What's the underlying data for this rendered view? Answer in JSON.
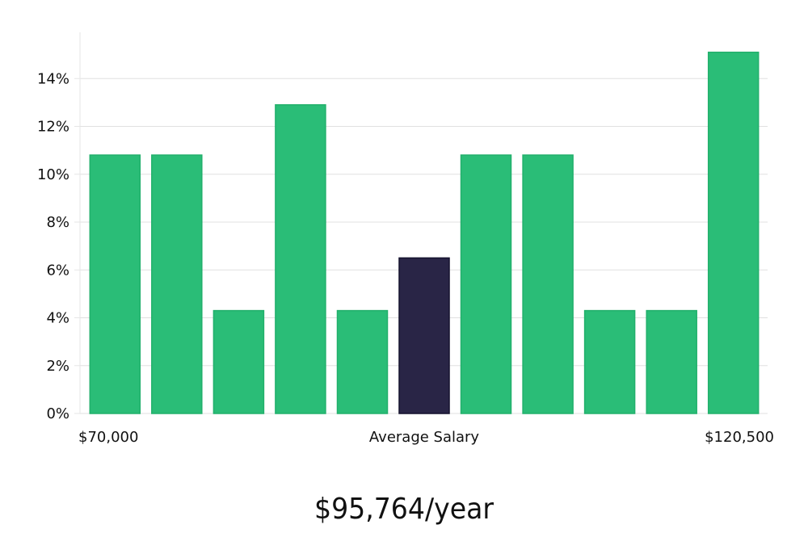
{
  "chart_data": {
    "type": "bar",
    "title": "",
    "xlabel": "",
    "ylabel": "",
    "ylim": [
      0,
      16
    ],
    "y_ticks": [
      0,
      2,
      4,
      6,
      8,
      10,
      12,
      14
    ],
    "y_tick_suffix": "%",
    "x_axis_labels": {
      "left": "$70,000",
      "center": "Average Salary",
      "right": "$120,500"
    },
    "values": [
      10.8,
      10.8,
      4.3,
      12.9,
      4.3,
      6.5,
      10.8,
      10.8,
      4.3,
      4.3,
      15.1
    ],
    "highlight_index": 5,
    "grid": true,
    "colors": {
      "bar": "#2abd77",
      "bar_border": "#22b06c",
      "highlight": "#292546",
      "highlight_border": "#15122e",
      "grid": "#e0e0e0",
      "axis": "#e6e6e6"
    }
  },
  "salary_text": "$95,764/year"
}
